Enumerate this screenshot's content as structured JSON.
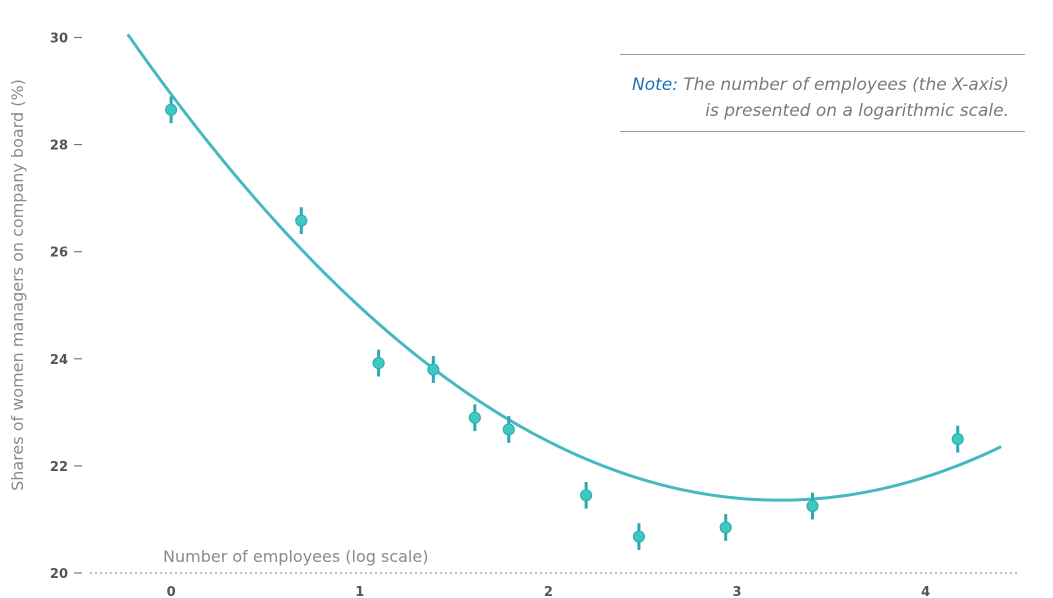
{
  "chart_data": {
    "type": "scatter",
    "xlabel": "Number of employees (log scale)",
    "ylabel": "Shares of women managers on company board (%)",
    "xlim": [
      -0.43,
      4.5
    ],
    "ylim": [
      20,
      30.7
    ],
    "x_ticks": [
      0,
      1,
      2,
      3,
      4
    ],
    "y_ticks": [
      20,
      22,
      24,
      26,
      28,
      30
    ],
    "baseline_dotted": true,
    "grid": false,
    "points": [
      {
        "x": 0.0,
        "y": 28.65,
        "err": 0.25
      },
      {
        "x": 0.69,
        "y": 26.58,
        "err": 0.25
      },
      {
        "x": 1.1,
        "y": 23.92,
        "err": 0.25
      },
      {
        "x": 1.39,
        "y": 23.8,
        "err": 0.25
      },
      {
        "x": 1.61,
        "y": 22.9,
        "err": 0.25
      },
      {
        "x": 1.79,
        "y": 22.68,
        "err": 0.25
      },
      {
        "x": 2.2,
        "y": 21.45,
        "err": 0.25
      },
      {
        "x": 2.48,
        "y": 20.68,
        "err": 0.25
      },
      {
        "x": 2.94,
        "y": 20.85,
        "err": 0.25
      },
      {
        "x": 3.4,
        "y": 21.25,
        "err": 0.25
      },
      {
        "x": 4.17,
        "y": 22.5,
        "err": 0.25
      }
    ],
    "fit_curve": {
      "type": "quadratic",
      "x_range": [
        -0.23,
        4.4
      ],
      "coefficients": [
        28.94,
        -4.697,
        0.7276
      ]
    },
    "annotation": {
      "label": "Note:",
      "line1": "The number of employees (the X-axis)",
      "line2": "is presented on a logarithmic scale."
    },
    "colors": {
      "fit": "#45b9bf",
      "marker": "#3ec8c0",
      "error_bar": "#2aa9b3",
      "tick_text": "#555555",
      "axis_title": "#8a8a8a",
      "note_label": "#1f6fb5",
      "note_text": "#7a7a7a",
      "baseline": "#9a9a9a"
    }
  }
}
